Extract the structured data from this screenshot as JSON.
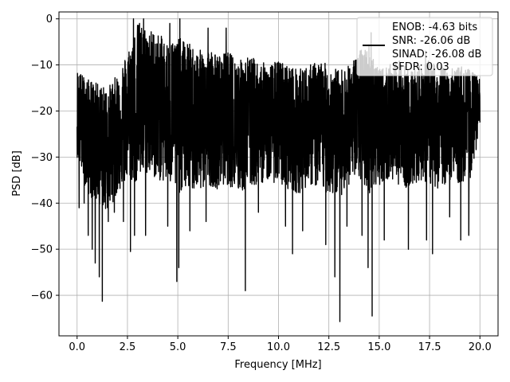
{
  "chart_data": {
    "type": "line",
    "xlabel": "Frequency [MHz]",
    "ylabel": "PSD [dB]",
    "xlim": [
      -0.9,
      20.9
    ],
    "ylim": [
      -68.8,
      1.5
    ],
    "xticks": [
      0.0,
      2.5,
      5.0,
      7.5,
      10.0,
      12.5,
      15.0,
      17.5,
      20.0
    ],
    "xtick_labels": [
      "0.0",
      "2.5",
      "5.0",
      "7.5",
      "10.0",
      "12.5",
      "15.0",
      "17.5",
      "20.0"
    ],
    "yticks": [
      0,
      -10,
      -20,
      -30,
      -40,
      -50,
      -60
    ],
    "ytick_labels": [
      "0",
      "−10",
      "−20",
      "−30",
      "−40",
      "−50",
      "−60"
    ],
    "grid": true,
    "legend_position": "top-right",
    "legend_lines": [
      "ENOB: -4.63 bits",
      "SNR: -26.06 dB",
      "SINAD: -26.08 dB",
      "SFDR: 0.03"
    ],
    "series_color": "#000000",
    "envelope": {
      "x": [
        0.0,
        0.5,
        1.0,
        1.5,
        2.0,
        2.5,
        3.0,
        3.5,
        4.0,
        4.5,
        5.0,
        5.5,
        6.0,
        6.5,
        7.0,
        7.5,
        8.0,
        8.5,
        9.0,
        9.5,
        10.0,
        10.5,
        11.0,
        11.5,
        12.0,
        12.5,
        13.0,
        13.5,
        14.0,
        14.5,
        15.0,
        15.5,
        16.0,
        16.5,
        17.0,
        17.5,
        18.0,
        18.5,
        19.0,
        19.5,
        20.0
      ],
      "upper": [
        -11,
        -13,
        -14,
        -15,
        -12,
        -7,
        -1,
        -2,
        -3,
        -5,
        -4,
        -5,
        -7,
        -6,
        -8,
        -7,
        -9,
        -8,
        -9,
        -10,
        -9,
        -10,
        -11,
        -10,
        -9,
        -10,
        -11,
        -10,
        -7,
        -5,
        -11,
        -10,
        -9,
        -11,
        -10,
        -9,
        -10,
        -11,
        -10,
        -11,
        -13
      ],
      "lower": [
        -30,
        -38,
        -40,
        -42,
        -38,
        -35,
        -36,
        -34,
        -35,
        -36,
        -38,
        -37,
        -38,
        -36,
        -37,
        -36,
        -38,
        -37,
        -36,
        -35,
        -36,
        -37,
        -38,
        -36,
        -37,
        -38,
        -39,
        -36,
        -35,
        -38,
        -36,
        -35,
        -36,
        -37,
        -35,
        -36,
        -37,
        -35,
        -36,
        -35,
        -25
      ],
      "center": [
        -20,
        -24,
        -26,
        -27,
        -24,
        -21,
        -19,
        -18,
        -19,
        -20,
        -21,
        -21,
        -22,
        -21,
        -22,
        -22,
        -23,
        -22,
        -22,
        -22,
        -22,
        -23,
        -24,
        -23,
        -23,
        -24,
        -25,
        -23,
        -21,
        -21,
        -23,
        -22,
        -22,
        -24,
        -22,
        -22,
        -23,
        -23,
        -23,
        -23,
        -19
      ]
    },
    "dips": [
      {
        "x": 0.1,
        "y": -41
      },
      {
        "x": 0.35,
        "y": -40
      },
      {
        "x": 0.55,
        "y": -47
      },
      {
        "x": 0.75,
        "y": -50
      },
      {
        "x": 0.9,
        "y": -53
      },
      {
        "x": 1.1,
        "y": -56
      },
      {
        "x": 1.25,
        "y": -61.3
      },
      {
        "x": 1.55,
        "y": -44
      },
      {
        "x": 1.85,
        "y": -42
      },
      {
        "x": 2.3,
        "y": -44
      },
      {
        "x": 2.65,
        "y": -50.5
      },
      {
        "x": 2.85,
        "y": -47
      },
      {
        "x": 3.4,
        "y": -47
      },
      {
        "x": 4.5,
        "y": -45
      },
      {
        "x": 4.95,
        "y": -57
      },
      {
        "x": 5.05,
        "y": -54
      },
      {
        "x": 5.6,
        "y": -46
      },
      {
        "x": 6.4,
        "y": -44
      },
      {
        "x": 8.35,
        "y": -59
      },
      {
        "x": 9.0,
        "y": -42
      },
      {
        "x": 10.35,
        "y": -45
      },
      {
        "x": 10.7,
        "y": -51
      },
      {
        "x": 11.2,
        "y": -46
      },
      {
        "x": 12.35,
        "y": -49
      },
      {
        "x": 12.8,
        "y": -56
      },
      {
        "x": 13.05,
        "y": -65.7
      },
      {
        "x": 13.4,
        "y": -45
      },
      {
        "x": 14.15,
        "y": -47
      },
      {
        "x": 14.45,
        "y": -54
      },
      {
        "x": 14.65,
        "y": -64.5
      },
      {
        "x": 15.25,
        "y": -48
      },
      {
        "x": 16.45,
        "y": -50
      },
      {
        "x": 17.35,
        "y": -48
      },
      {
        "x": 17.65,
        "y": -51
      },
      {
        "x": 18.5,
        "y": -43
      },
      {
        "x": 19.05,
        "y": -48
      },
      {
        "x": 19.45,
        "y": -47
      }
    ],
    "peaks": [
      {
        "x": 2.8,
        "y": 0
      },
      {
        "x": 3.1,
        "y": -1
      },
      {
        "x": 3.3,
        "y": 0
      },
      {
        "x": 4.6,
        "y": -1
      },
      {
        "x": 5.1,
        "y": 0
      },
      {
        "x": 6.5,
        "y": -2
      },
      {
        "x": 7.4,
        "y": -2
      },
      {
        "x": 14.6,
        "y": -3
      },
      {
        "x": 17.3,
        "y": -7
      }
    ]
  }
}
